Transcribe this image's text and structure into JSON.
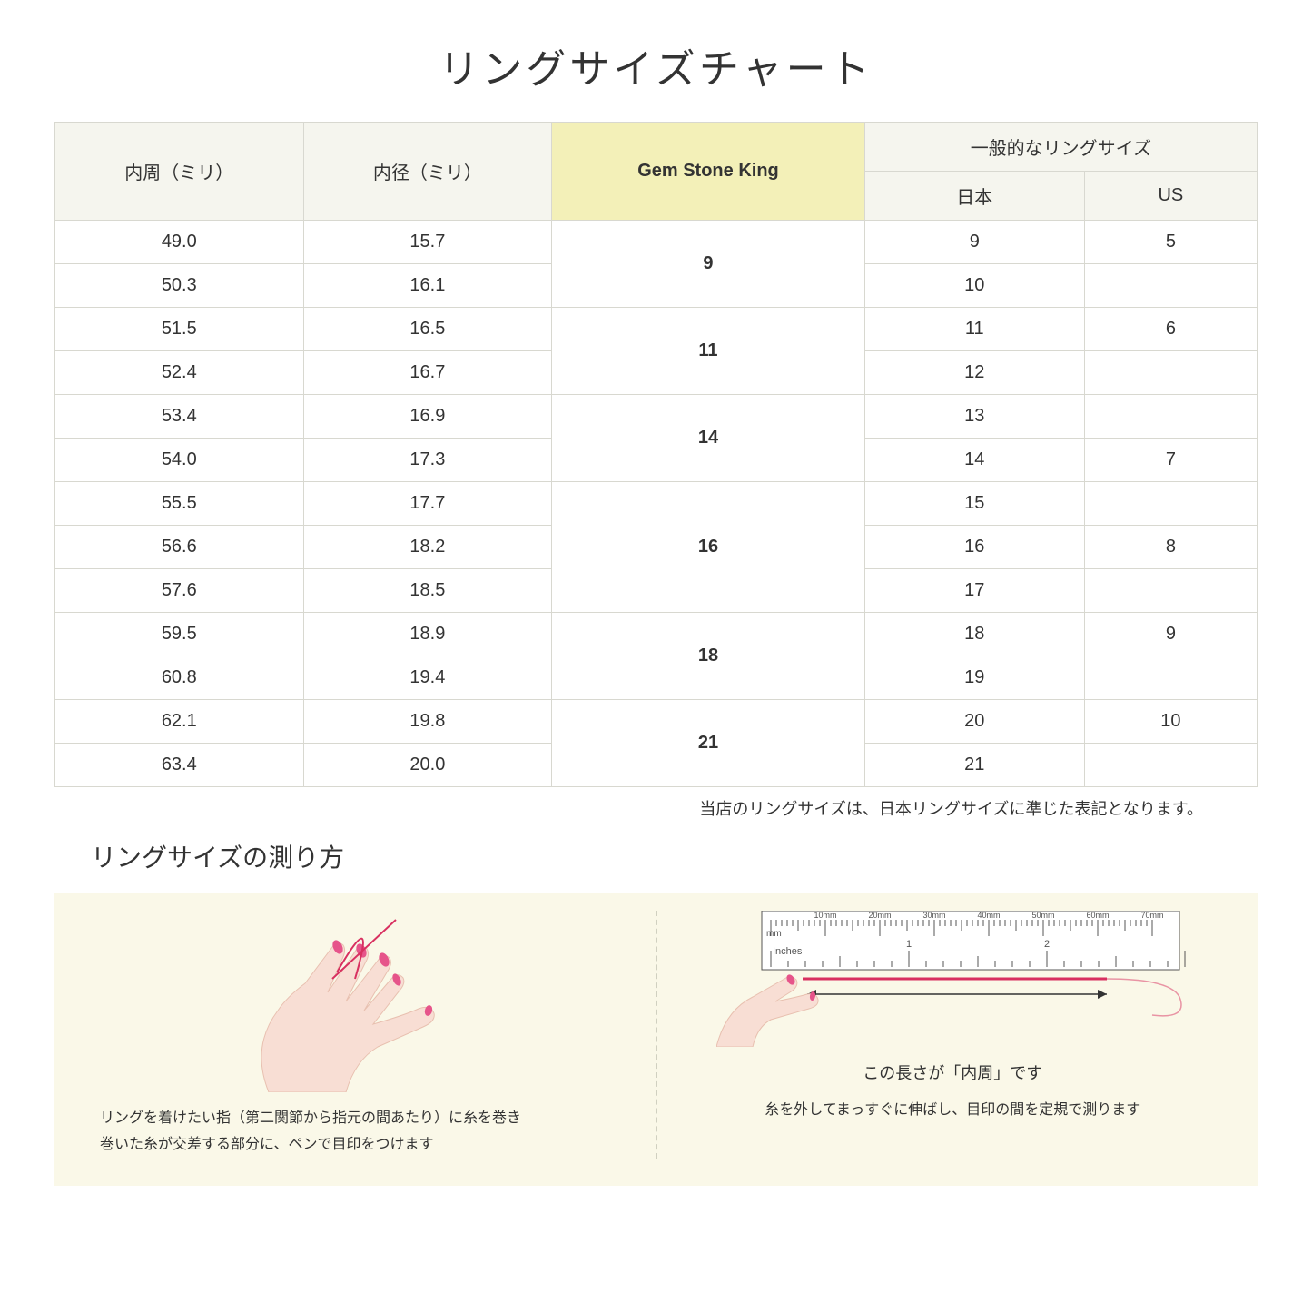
{
  "title": "リングサイズチャート",
  "headers": {
    "circ": "内周（ミリ）",
    "diam": "内径（ミリ）",
    "gsk": "Gem Stone King",
    "general": "一般的なリングサイズ",
    "jp": "日本",
    "us": "US"
  },
  "groups": [
    {
      "gsk": "9",
      "span": 2,
      "rows": [
        {
          "c": "49.0",
          "d": "15.7",
          "jp": "9",
          "us": "5"
        },
        {
          "c": "50.3",
          "d": "16.1",
          "jp": "10",
          "us": ""
        }
      ]
    },
    {
      "gsk": "11",
      "span": 2,
      "rows": [
        {
          "c": "51.5",
          "d": "16.5",
          "jp": "11",
          "us": "6"
        },
        {
          "c": "52.4",
          "d": "16.7",
          "jp": "12",
          "us": ""
        }
      ]
    },
    {
      "gsk": "14",
      "span": 2,
      "rows": [
        {
          "c": "53.4",
          "d": "16.9",
          "jp": "13",
          "us": ""
        },
        {
          "c": "54.0",
          "d": "17.3",
          "jp": "14",
          "us": "7"
        }
      ]
    },
    {
      "gsk": "16",
      "span": 3,
      "rows": [
        {
          "c": "55.5",
          "d": "17.7",
          "jp": "15",
          "us": ""
        },
        {
          "c": "56.6",
          "d": "18.2",
          "jp": "16",
          "us": "8"
        },
        {
          "c": "57.6",
          "d": "18.5",
          "jp": "17",
          "us": ""
        }
      ]
    },
    {
      "gsk": "18",
      "span": 2,
      "rows": [
        {
          "c": "59.5",
          "d": "18.9",
          "jp": "18",
          "us": "9"
        },
        {
          "c": "60.8",
          "d": "19.4",
          "jp": "19",
          "us": ""
        }
      ]
    },
    {
      "gsk": "21",
      "span": 2,
      "rows": [
        {
          "c": "62.1",
          "d": "19.8",
          "jp": "20",
          "us": "10"
        },
        {
          "c": "63.4",
          "d": "20.0",
          "jp": "21",
          "us": ""
        }
      ]
    }
  ],
  "note": "当店のリングサイズは、日本リングサイズに準じた表記となります。",
  "howto": {
    "title": "リングサイズの測り方",
    "left_caption": "リングを着けたい指（第二関節から指元の間あたり）に糸を巻き\n巻いた糸が交差する部分に、ペンで目印をつけます",
    "right_arrow": "この長さが「内周」です",
    "right_caption": "糸を外してまっすぐに伸ばし、目印の間を定規で測ります"
  },
  "ruler": {
    "mm_label": "mm",
    "in_label": "Inches",
    "mm_ticks": [
      "10mm",
      "20mm",
      "30mm",
      "40mm",
      "50mm",
      "60mm",
      "70mm"
    ],
    "in_ticks": [
      "1",
      "2"
    ]
  },
  "colors": {
    "skin": "#f8ded4",
    "skin_dark": "#e8c0b0",
    "nail": "#e6548a",
    "thread": "#d83060",
    "ruler_bg": "#ffffff",
    "ruler_line": "#555555"
  }
}
